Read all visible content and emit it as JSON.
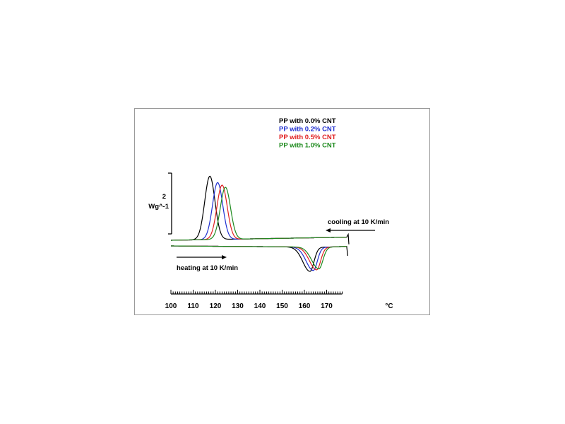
{
  "chart_data": {
    "type": "line",
    "title": "",
    "xlabel": "°C",
    "ylabel": "Wg^-1",
    "scale_bar": {
      "value": "2",
      "unit": "Wg^-1"
    },
    "xlim": [
      100,
      180
    ],
    "x_ticks": [
      "100",
      "110",
      "120",
      "130",
      "140",
      "150",
      "160",
      "170"
    ],
    "x_unit_label": "°C",
    "grid": false,
    "legend_position": "top-right",
    "annotations": {
      "cooling": "cooling at 10 K/min",
      "heating": "heating at 10 K/min"
    },
    "series": [
      {
        "name": "PP with 0.0% CNT",
        "color": "#000000",
        "cooling_peak_temp": 117.5,
        "cooling_peak_height": 1.95,
        "heating_peak_temp": 162.5,
        "heating_peak_depth": 0.75
      },
      {
        "name": "PP with 0.2% CNT",
        "color": "#1f2fd0",
        "cooling_peak_temp": 121.0,
        "cooling_peak_height": 1.75,
        "heating_peak_temp": 164.0,
        "heating_peak_depth": 0.72
      },
      {
        "name": "PP with 0.5% CNT",
        "color": "#e02020",
        "cooling_peak_temp": 123.0,
        "cooling_peak_height": 1.67,
        "heating_peak_temp": 165.5,
        "heating_peak_depth": 0.7
      },
      {
        "name": "PP with 1.0% CNT",
        "color": "#1e8a1e",
        "cooling_peak_temp": 124.5,
        "cooling_peak_height": 1.6,
        "heating_peak_temp": 166.5,
        "heating_peak_depth": 0.67
      }
    ]
  }
}
